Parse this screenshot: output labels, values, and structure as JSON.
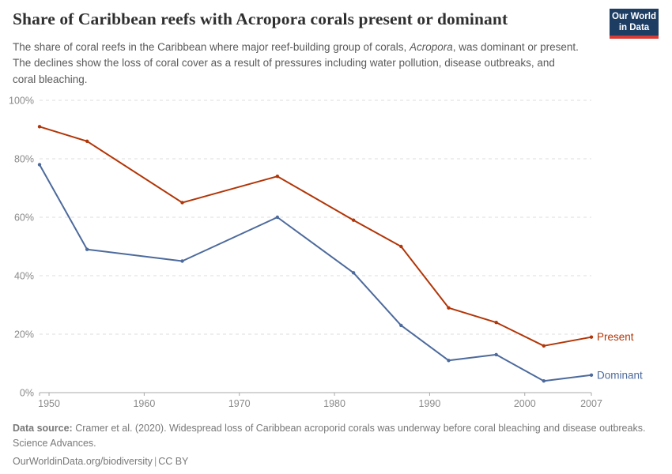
{
  "header": {
    "title": "Share of Caribbean reefs with Acropora corals present or dominant",
    "subtitle_part1": "The share of coral reefs in the Caribbean where major reef-building group of corals, ",
    "subtitle_italic": "Acropora",
    "subtitle_part2": ", was dominant or present. The declines show the loss of coral cover as a result of pressures including water pollution, disease outbreaks, and coral bleaching."
  },
  "logo": {
    "line1": "Our World",
    "line2": "in Data",
    "bg_color": "#1d3d63",
    "accent_color": "#d93a34"
  },
  "chart_data": {
    "type": "line",
    "x": [
      1949,
      1954,
      1964,
      1974,
      1982,
      1987,
      1992,
      1997,
      2002,
      2007
    ],
    "series": [
      {
        "name": "Present",
        "color": "#b13507",
        "values": [
          91,
          86,
          65,
          74,
          59,
          50,
          29,
          24,
          16,
          19
        ]
      },
      {
        "name": "Dominant",
        "color": "#4c6a9c",
        "values": [
          78,
          49,
          45,
          60,
          41,
          23,
          11,
          13,
          4,
          6
        ]
      }
    ],
    "title": "Share of Caribbean reefs with Acropora corals present or dominant",
    "xlabel": "",
    "ylabel": "",
    "xlim": [
      1949,
      2007
    ],
    "ylim": [
      0,
      100
    ],
    "x_ticks": [
      1950,
      1960,
      1970,
      1980,
      1990,
      2000,
      2007
    ],
    "y_ticks": [
      0,
      20,
      40,
      60,
      80,
      100
    ],
    "y_tick_suffix": "%",
    "grid": "horizontal-dashed",
    "gridline_color": "#dcdcdc",
    "axis_color": "#a8a8a8",
    "legend_position": "end-of-line-labels"
  },
  "footer": {
    "source_label": "Data source:",
    "source_text": "Cramer et al. (2020). Widespread loss of Caribbean acroporid corals was underway before coral bleaching and disease outbreaks. Science Advances.",
    "url": "OurWorldinData.org/biodiversity",
    "separator": "|",
    "license": "CC BY"
  }
}
